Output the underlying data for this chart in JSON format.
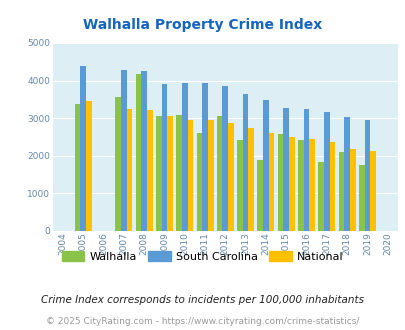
{
  "title": "Walhalla Property Crime Index",
  "years": [
    2004,
    2005,
    2006,
    2007,
    2008,
    2009,
    2010,
    2011,
    2012,
    2013,
    2014,
    2015,
    2016,
    2017,
    2018,
    2019,
    2020
  ],
  "walhalla": [
    null,
    3380,
    null,
    3570,
    4180,
    3050,
    3075,
    2600,
    3050,
    2420,
    1900,
    2580,
    2420,
    1830,
    2090,
    1750,
    null
  ],
  "south_carolina": [
    null,
    4380,
    null,
    4280,
    4250,
    3920,
    3930,
    3930,
    3850,
    3640,
    3490,
    3280,
    3240,
    3160,
    3040,
    2950,
    null
  ],
  "national": [
    null,
    3450,
    null,
    3240,
    3220,
    3050,
    2960,
    2940,
    2880,
    2740,
    2600,
    2490,
    2450,
    2360,
    2190,
    2130,
    null
  ],
  "walhalla_color": "#8bc34a",
  "sc_color": "#5b9bd5",
  "national_color": "#ffc000",
  "bg_color": "#ddeef5",
  "title_color": "#1565c0",
  "ylim": [
    0,
    5000
  ],
  "yticks": [
    0,
    1000,
    2000,
    3000,
    4000,
    5000
  ],
  "footnote1": "Crime Index corresponds to incidents per 100,000 inhabitants",
  "footnote2": "© 2025 CityRating.com - https://www.cityrating.com/crime-statistics/",
  "bar_width": 0.28
}
